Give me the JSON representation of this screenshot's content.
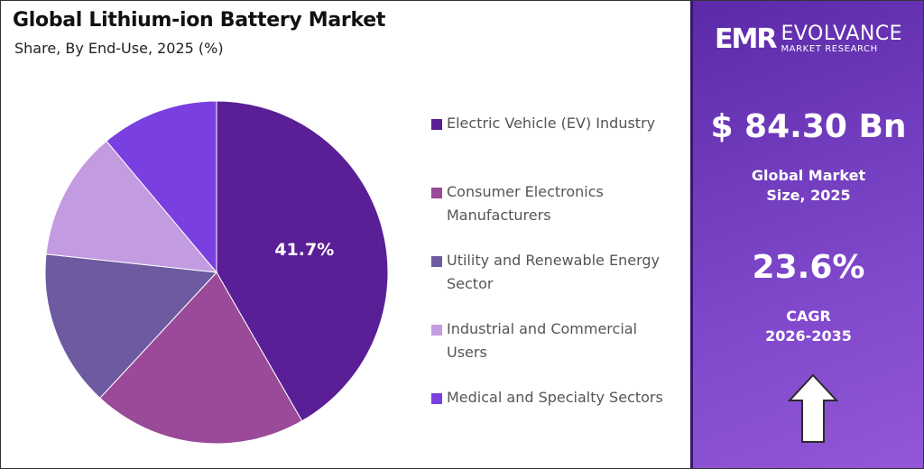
{
  "header": {
    "title": "Global Lithium-ion Battery Market",
    "subtitle": "Share, By End-Use, 2025 (%)"
  },
  "chart_data": {
    "type": "pie",
    "title": "Global Lithium-ion Battery Market",
    "subtitle": "Share, By End-Use, 2025 (%)",
    "categories": [
      "Electric Vehicle (EV) Industry",
      "Consumer Electronics Manufacturers",
      "Utility and Renewable Energy Sector",
      "Industrial and Commercial Users",
      "Medical and Specialty Sectors"
    ],
    "values": [
      41.7,
      20.2,
      14.8,
      12.2,
      11.1
    ],
    "colors": [
      "#5a1e96",
      "#9a4a98",
      "#6d5aa0",
      "#c39be0",
      "#7a3fe0"
    ],
    "data_labels": [
      "41.7%",
      "",
      "",
      "",
      ""
    ],
    "legend_position": "right"
  },
  "sidebar": {
    "brand": {
      "mark": "EMR",
      "name": "EVOLVANCE",
      "sub": "MARKET RESEARCH"
    },
    "market_value": "$ 84.30 Bn",
    "market_label_1": "Global Market",
    "market_label_2": "Size, 2025",
    "cagr_value": "23.6%",
    "cagr_label_1": "CAGR",
    "cagr_label_2": "2026-2035",
    "icon": "up-arrow-icon"
  }
}
